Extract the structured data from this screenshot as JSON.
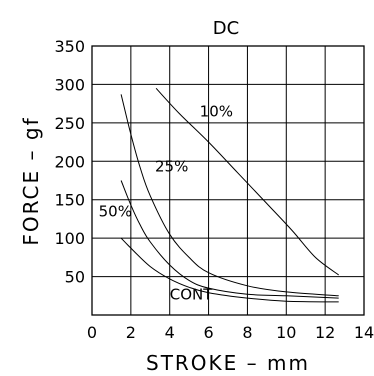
{
  "chart_data": {
    "type": "line",
    "title": "DC",
    "xlabel": "STROKE – mm",
    "ylabel": "FORCE – gf",
    "xlim": [
      0,
      14
    ],
    "ylim": [
      0,
      350
    ],
    "x_ticks": [
      "0",
      "2",
      "4",
      "6",
      "8",
      "10",
      "12",
      "14"
    ],
    "y_ticks": [
      "50",
      "100",
      "150",
      "200",
      "250",
      "300",
      "350"
    ],
    "grid": true,
    "series": [
      {
        "name": "10%",
        "x": [
          3.3,
          4.5,
          6.0,
          7.5,
          9.0,
          10.3,
          11.5,
          12.7
        ],
        "y": [
          295,
          262,
          225,
          185,
          145,
          110,
          75,
          52
        ]
      },
      {
        "name": "25%",
        "x": [
          1.5,
          2.0,
          2.5,
          3.0,
          4.0,
          5.0,
          6.0,
          8.0,
          10.0,
          12.7
        ],
        "y": [
          287,
          235,
          190,
          155,
          105,
          75,
          55,
          38,
          30,
          25
        ]
      },
      {
        "name": "50%",
        "x": [
          1.5,
          2.0,
          2.5,
          3.0,
          4.0,
          5.0,
          6.0,
          8.0,
          10.0,
          12.7
        ],
        "y": [
          175,
          143,
          116,
          95,
          65,
          45,
          35,
          27,
          25,
          22
        ]
      },
      {
        "name": "CONT",
        "x": [
          1.5,
          2.0,
          3.0,
          4.0,
          5.0,
          6.0,
          8.0,
          10.0,
          12.7
        ],
        "y": [
          100,
          87,
          63,
          47,
          36,
          29,
          22,
          18,
          17
        ]
      }
    ]
  }
}
